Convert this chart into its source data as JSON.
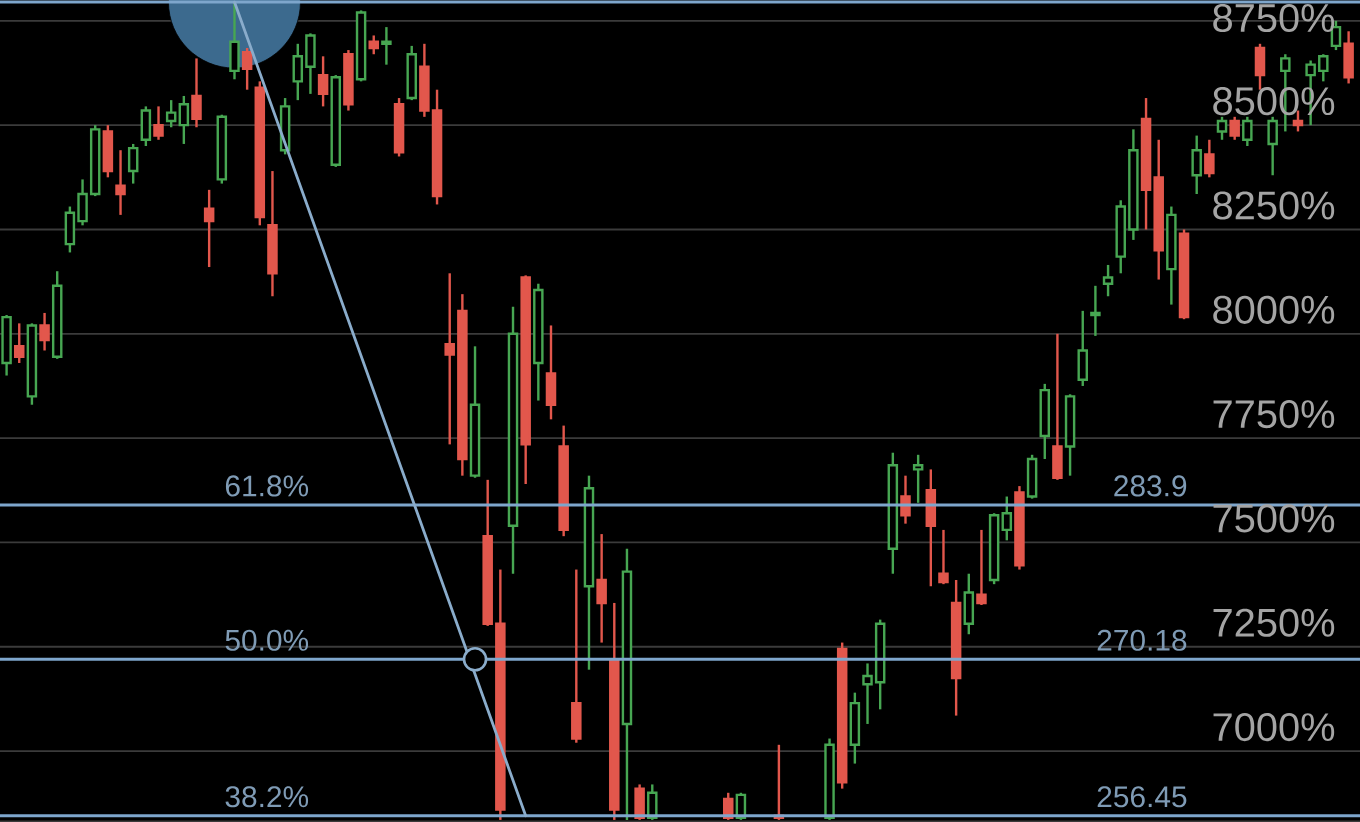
{
  "chart_data": {
    "type": "candlestick",
    "categories": [
      null,
      null,
      null,
      null,
      null,
      null,
      null,
      null,
      null,
      null,
      null,
      null,
      null,
      null,
      null,
      null,
      null,
      null,
      null,
      null,
      null,
      null,
      null,
      null,
      null,
      null,
      null,
      null,
      null,
      null,
      null,
      null,
      null,
      null,
      null,
      null,
      null,
      null,
      null,
      null,
      null,
      null,
      null,
      null,
      null,
      null,
      null,
      null,
      null,
      null,
      null,
      null,
      null,
      null,
      null,
      null,
      null,
      null,
      null,
      null,
      null,
      null,
      null,
      null,
      null,
      null,
      null,
      null,
      null,
      null,
      null,
      null,
      null,
      null,
      null,
      null,
      null,
      null,
      null,
      null,
      null,
      null,
      null,
      null,
      null,
      null,
      null,
      null,
      null,
      null,
      null,
      null,
      null,
      null,
      null,
      null,
      null,
      null,
      null,
      null,
      null,
      null,
      null,
      null,
      null,
      null,
      null
    ],
    "ohlc": [
      [
        7930,
        8045,
        7900,
        8040
      ],
      [
        7970,
        8025,
        7930,
        7945
      ],
      [
        7850,
        8025,
        7830,
        8020
      ],
      [
        8020,
        8050,
        7960,
        7985
      ],
      [
        7945,
        8150,
        7940,
        8115
      ],
      [
        8215,
        8305,
        8195,
        8290
      ],
      [
        8270,
        8370,
        8260,
        8335
      ],
      [
        8335,
        8500,
        8330,
        8490
      ],
      [
        8485,
        8500,
        8375,
        8390
      ],
      [
        8355,
        8440,
        8285,
        8335
      ],
      [
        8390,
        8455,
        8360,
        8445
      ],
      [
        8465,
        8545,
        8450,
        8535
      ],
      [
        8500,
        8545,
        8465,
        8475
      ],
      [
        8510,
        8560,
        8495,
        8530
      ],
      [
        8500,
        8570,
        8455,
        8550
      ],
      [
        8570,
        8660,
        8495,
        8515
      ],
      [
        8300,
        8345,
        8160,
        8270
      ],
      [
        8370,
        8525,
        8360,
        8520
      ],
      [
        8630,
        8795,
        8610,
        8700
      ],
      [
        8675,
        8685,
        8585,
        8635
      ],
      [
        8590,
        8605,
        8260,
        8280
      ],
      [
        8260,
        8390,
        8090,
        8145
      ],
      [
        8440,
        8565,
        8430,
        8545
      ],
      [
        8605,
        8695,
        8560,
        8665
      ],
      [
        8640,
        8720,
        8575,
        8715
      ],
      [
        8620,
        8665,
        8545,
        8575
      ],
      [
        8405,
        8620,
        8400,
        8615
      ],
      [
        8670,
        8680,
        8535,
        8550
      ],
      [
        8610,
        8775,
        8605,
        8770
      ],
      [
        8700,
        8715,
        8670,
        8685
      ],
      [
        8695,
        8735,
        8645,
        8700
      ],
      [
        8550,
        8565,
        8425,
        8435
      ],
      [
        8565,
        8690,
        8560,
        8670
      ],
      [
        8640,
        8695,
        8520,
        8535
      ],
      [
        8535,
        8585,
        8310,
        8330
      ],
      [
        7975,
        8145,
        7735,
        7950
      ],
      [
        8055,
        8095,
        7660,
        7700
      ],
      [
        7660,
        7970,
        7655,
        7830
      ],
      [
        7515,
        7650,
        7300,
        7305
      ],
      [
        7305,
        7435,
        6835,
        6860
      ],
      [
        7540,
        8065,
        7425,
        8000
      ],
      [
        8135,
        8140,
        7640,
        7735
      ],
      [
        7930,
        8120,
        7840,
        8105
      ],
      [
        7905,
        8020,
        7795,
        7830
      ],
      [
        7730,
        7780,
        7515,
        7530
      ],
      [
        7115,
        7435,
        7020,
        7030
      ],
      [
        7395,
        7660,
        7195,
        7630
      ],
      [
        7410,
        7520,
        7260,
        7355
      ],
      [
        7220,
        7355,
        6835,
        6860
      ],
      [
        7065,
        7485,
        6835,
        7430
      ],
      [
        6910,
        6920,
        6835,
        6840
      ],
      [
        6840,
        6920,
        6835,
        6900
      ],
      null,
      null,
      null,
      null,
      null,
      [
        6885,
        6900,
        6835,
        6840
      ],
      [
        6840,
        6900,
        6835,
        6895
      ],
      null,
      null,
      [
        6845,
        7015,
        6835,
        6840
      ],
      null,
      null,
      null,
      [
        6840,
        7030,
        6835,
        7015
      ],
      [
        7245,
        7260,
        6910,
        6925
      ],
      [
        7015,
        7140,
        6970,
        7115
      ],
      [
        7160,
        7210,
        7065,
        7180
      ],
      [
        7165,
        7315,
        7100,
        7305
      ],
      [
        7485,
        7715,
        7425,
        7685
      ],
      [
        7610,
        7660,
        7545,
        7565
      ],
      [
        7675,
        7710,
        7595,
        7685
      ],
      [
        7625,
        7675,
        7395,
        7540
      ],
      [
        7425,
        7530,
        7400,
        7405
      ],
      [
        7355,
        7410,
        7085,
        7175
      ],
      [
        7305,
        7425,
        7280,
        7380
      ],
      [
        7375,
        7530,
        7350,
        7355
      ],
      [
        7410,
        7570,
        7400,
        7565
      ],
      [
        7530,
        7610,
        7505,
        7570
      ],
      [
        7620,
        7635,
        7435,
        7445
      ],
      [
        7610,
        7710,
        7605,
        7700
      ],
      [
        7755,
        7880,
        7700,
        7865
      ],
      [
        7730,
        8000,
        7650,
        7655
      ],
      [
        7730,
        7855,
        7660,
        7850
      ],
      [
        7890,
        8055,
        7875,
        7960
      ],
      [
        8045,
        8115,
        7995,
        8050
      ],
      [
        8120,
        8165,
        8090,
        8135
      ],
      [
        8185,
        8320,
        8145,
        8305
      ],
      [
        8250,
        8490,
        8225,
        8440
      ],
      [
        8515,
        8565,
        8250,
        8345
      ],
      [
        8375,
        8465,
        8130,
        8200
      ],
      [
        8155,
        8305,
        8070,
        8285
      ],
      [
        8240,
        8250,
        8035,
        8040
      ],
      [
        8380,
        8475,
        8335,
        8440
      ],
      [
        8430,
        8465,
        8375,
        8385
      ],
      [
        8485,
        8520,
        8465,
        8510
      ],
      [
        8510,
        8520,
        8465,
        8475
      ],
      [
        8465,
        8520,
        8450,
        8510
      ],
      [
        8685,
        8695,
        8585,
        8620
      ],
      [
        8455,
        8520,
        8380,
        8510
      ],
      [
        8630,
        8670,
        8485,
        8660
      ],
      [
        8510,
        8535,
        8485,
        8500
      ],
      [
        8620,
        8655,
        8500,
        8645
      ],
      [
        8630,
        8670,
        8605,
        8665
      ],
      [
        8690,
        8750,
        8680,
        8735
      ],
      [
        8695,
        8725,
        8600,
        8615
      ]
    ],
    "colors": [
      "#47a652",
      "#e2574c",
      "#47a652",
      "#e2574c",
      "#47a652",
      "#47a652",
      "#47a652",
      "#47a652",
      "#e2574c",
      "#e2574c",
      "#47a652",
      "#47a652",
      "#e2574c",
      "#47a652",
      "#47a652",
      "#e2574c",
      "#e2574c",
      "#47a652",
      "#47a652",
      "#e2574c",
      "#e2574c",
      "#e2574c",
      "#47a652",
      "#47a652",
      "#47a652",
      "#e2574c",
      "#47a652",
      "#e2574c",
      "#47a652",
      "#e2574c",
      "#47a652",
      "#e2574c",
      "#47a652",
      "#e2574c",
      "#e2574c",
      "#e2574c",
      "#e2574c",
      "#47a652",
      "#e2574c",
      "#e2574c",
      "#47a652",
      "#e2574c",
      "#47a652",
      "#e2574c",
      "#e2574c",
      "#e2574c",
      "#47a652",
      "#e2574c",
      "#e2574c",
      "#47a652",
      "#e2574c",
      "#47a652",
      null,
      null,
      null,
      null,
      null,
      "#e2574c",
      "#47a652",
      null,
      null,
      "#e2574c",
      null,
      null,
      null,
      "#47a652",
      "#e2574c",
      "#47a652",
      "#47a652",
      "#47a652",
      "#47a652",
      "#e2574c",
      "#47a652",
      "#e2574c",
      "#e2574c",
      "#e2574c",
      "#47a652",
      "#e2574c",
      "#47a652",
      "#47a652",
      "#e2574c",
      "#47a652",
      "#47a652",
      "#e2574c",
      "#47a652",
      "#47a652",
      "#47a652",
      "#47a652",
      "#47a652",
      "#47a652",
      "#e2574c",
      "#e2574c",
      "#47a652",
      "#e2574c",
      "#47a652",
      "#e2574c",
      "#47a652",
      "#e2574c",
      "#47a652",
      "#e2574c",
      "#47a652",
      "#47a652",
      "#e2574c",
      "#47a652",
      "#47a652",
      "#47a652",
      "#e2574c"
    ],
    "ylim": [
      6830,
      8800
    ],
    "yticks": [
      {
        "value": 7000,
        "label": "7000%"
      },
      {
        "value": 7250,
        "label": "7250%"
      },
      {
        "value": 7500,
        "label": "7500%"
      },
      {
        "value": 7750,
        "label": "7750%"
      },
      {
        "value": 8000,
        "label": "8000%"
      },
      {
        "value": 8250,
        "label": "8250%"
      },
      {
        "value": 8500,
        "label": "8500%"
      },
      {
        "value": 8750,
        "label": "8750%"
      }
    ],
    "grid": "y",
    "tick_labels": "y",
    "ref_lines": [
      {
        "axis": "y",
        "value": 8795,
        "color": "#7ea6cc"
      },
      {
        "axis": "y",
        "value": 7590,
        "color": "#7ea6cc"
      },
      {
        "axis": "y",
        "value": 7220,
        "color": "#7ea6cc"
      },
      {
        "axis": "y",
        "value": 6845,
        "color": "#7ea6cc"
      }
    ],
    "annotations": [
      {
        "text": "61.8%",
        "y": 7590
      },
      {
        "text": "50.0%",
        "y": 7220
      },
      {
        "text": "38.2%",
        "y": 6845
      },
      {
        "text": "283.9",
        "y": 7590
      },
      {
        "text": "270.18",
        "y": 7220
      },
      {
        "text": "256.45",
        "y": 6845
      }
    ],
    "series": [
      {
        "type": "bubble",
        "color": "#3c6a8e",
        "values": [
          null,
          null,
          null,
          null,
          null,
          null,
          null,
          null,
          null,
          null,
          null,
          null,
          null,
          null,
          null,
          null,
          null,
          null,
          8795,
          null,
          null,
          null,
          null,
          null,
          null,
          null,
          null,
          null,
          null,
          null,
          null,
          null,
          null,
          null,
          null,
          null,
          null,
          null,
          null,
          null,
          null,
          null,
          null,
          null,
          null,
          null,
          null,
          null,
          null,
          null,
          null,
          null,
          null,
          null,
          null,
          null,
          null,
          null,
          null,
          null,
          null,
          null,
          null,
          null,
          null,
          null,
          null,
          null,
          null,
          null,
          null,
          null,
          null,
          null,
          null,
          null,
          null,
          null,
          null,
          null,
          null,
          null,
          null,
          null,
          null,
          null,
          null,
          null,
          null,
          null,
          null,
          null,
          null,
          null,
          null,
          null,
          null,
          null,
          null,
          null,
          null,
          null,
          null,
          null,
          null,
          null,
          null
        ],
        "sizes": [
          null,
          null,
          null,
          null,
          null,
          null,
          null,
          null,
          null,
          null,
          null,
          null,
          null,
          null,
          null,
          null,
          null,
          null,
          1,
          null,
          null,
          null,
          null,
          null,
          null,
          null,
          null,
          null,
          null,
          null,
          null,
          null,
          null,
          null,
          null,
          null,
          null,
          null,
          null,
          null,
          null,
          null,
          null,
          null,
          null,
          null,
          null,
          null,
          null,
          null,
          null,
          null,
          null,
          null,
          null,
          null,
          null,
          null,
          null,
          null,
          null,
          null,
          null,
          null,
          null,
          null,
          null,
          null,
          null,
          null,
          null,
          null,
          null,
          null,
          null,
          null,
          null,
          null,
          null,
          null,
          null,
          null,
          null,
          null,
          null,
          null,
          null,
          null,
          null,
          null,
          null,
          null,
          null,
          null,
          null,
          null,
          null,
          null,
          null,
          null,
          null,
          null,
          null,
          null,
          null,
          null,
          null
        ]
      },
      {
        "type": "line",
        "color": "#8aaccb",
        "values": [
          null,
          null,
          null,
          null,
          null,
          null,
          null,
          null,
          null,
          null,
          null,
          null,
          null,
          null,
          null,
          null,
          null,
          null,
          8795,
          null,
          null,
          null,
          null,
          null,
          null,
          null,
          null,
          null,
          null,
          null,
          null,
          null,
          null,
          null,
          null,
          null,
          null,
          null,
          null,
          null,
          null,
          6845,
          null,
          null,
          null,
          null,
          null,
          null,
          null,
          null,
          null,
          null,
          null,
          null,
          null,
          null,
          null,
          null,
          null,
          null,
          null,
          null,
          null,
          null,
          null,
          null,
          null,
          null,
          null,
          null,
          null,
          null,
          null,
          null,
          null,
          null,
          null,
          null,
          null,
          null,
          null,
          null,
          null,
          null,
          null,
          null,
          null,
          null,
          null,
          null,
          null,
          null,
          null,
          null,
          null,
          null,
          null,
          null,
          null,
          null,
          null,
          null,
          null,
          null,
          null,
          null,
          null
        ]
      },
      {
        "type": "scatter",
        "color": "#8aaccb",
        "marker": "circle",
        "values": [
          null,
          null,
          null,
          null,
          null,
          null,
          null,
          null,
          null,
          null,
          null,
          null,
          null,
          null,
          null,
          null,
          null,
          null,
          null,
          null,
          null,
          null,
          null,
          null,
          null,
          null,
          null,
          null,
          null,
          null,
          null,
          null,
          null,
          null,
          null,
          null,
          null,
          7220,
          null,
          null,
          null,
          null,
          null,
          null,
          null,
          null,
          null,
          null,
          null,
          null,
          null,
          null,
          null,
          null,
          null,
          null,
          null,
          null,
          null,
          null,
          null,
          null,
          null,
          null,
          null,
          null,
          null,
          null,
          null,
          null,
          null,
          null,
          null,
          null,
          null,
          null,
          null,
          null,
          null,
          null,
          null,
          null,
          null,
          null,
          null,
          null,
          null,
          null,
          null,
          null,
          null,
          null,
          null,
          null,
          null,
          null,
          null,
          null,
          null,
          null,
          null,
          null,
          null,
          null,
          null,
          null,
          null
        ]
      }
    ]
  }
}
